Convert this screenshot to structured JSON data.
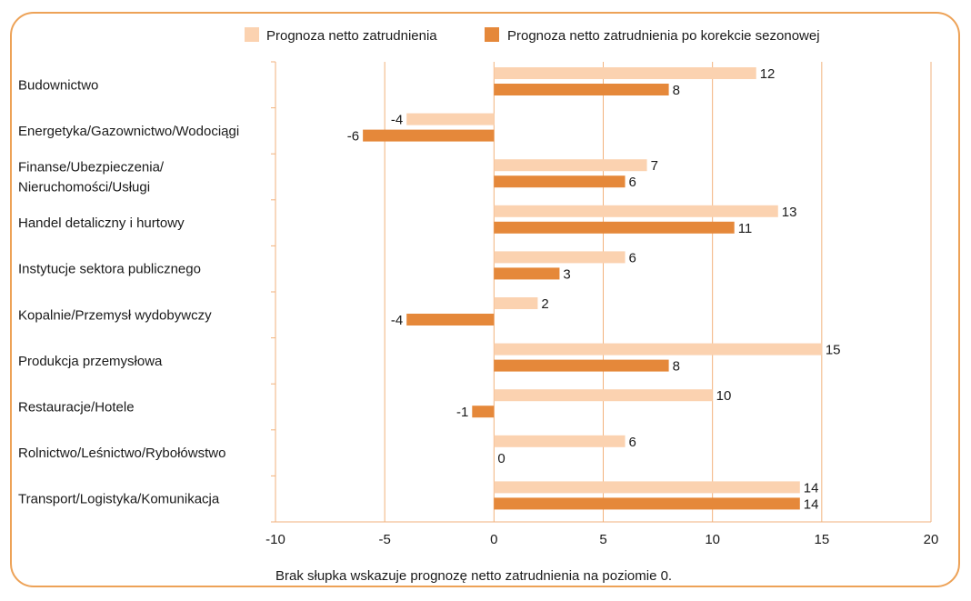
{
  "chart_data": {
    "type": "bar",
    "orientation": "horizontal",
    "categories": [
      [
        "Budownictwo"
      ],
      [
        "Energetyka/Gazownictwo/Wodociągi"
      ],
      [
        "Finanse/Ubezpieczenia/",
        "Nieruchomości/Usługi"
      ],
      [
        "Handel detaliczny i hurtowy"
      ],
      [
        "Instytucje sektora publicznego"
      ],
      [
        "Kopalnie/Przemysł wydobywczy"
      ],
      [
        "Produkcja przemysłowa"
      ],
      [
        "Restauracje/Hotele"
      ],
      [
        "Rolnictwo/Leśnictwo/Rybołówstwo"
      ],
      [
        "Transport/Logistyka/Komunikacja"
      ]
    ],
    "series": [
      {
        "name": "Prognoza netto zatrudnienia",
        "color": "#fbd2b0",
        "values": [
          12,
          -4,
          7,
          13,
          6,
          2,
          15,
          10,
          6,
          14
        ]
      },
      {
        "name": "Prognoza netto zatrudnienia po korekcie sezonowej",
        "color": "#e5883a",
        "values": [
          8,
          -6,
          6,
          11,
          3,
          -4,
          8,
          -1,
          0,
          14
        ]
      }
    ],
    "xlim": [
      -10,
      20
    ],
    "xticks": [
      "-10",
      "-5",
      "0",
      "5",
      "10",
      "15",
      "20"
    ],
    "grid": true,
    "gridline_color": "#f2b27c",
    "legend_position": "top",
    "footnote": "Brak słupka wskazuje prognozę netto zatrudnienia na poziomie 0."
  },
  "frame_color": "#eda257"
}
